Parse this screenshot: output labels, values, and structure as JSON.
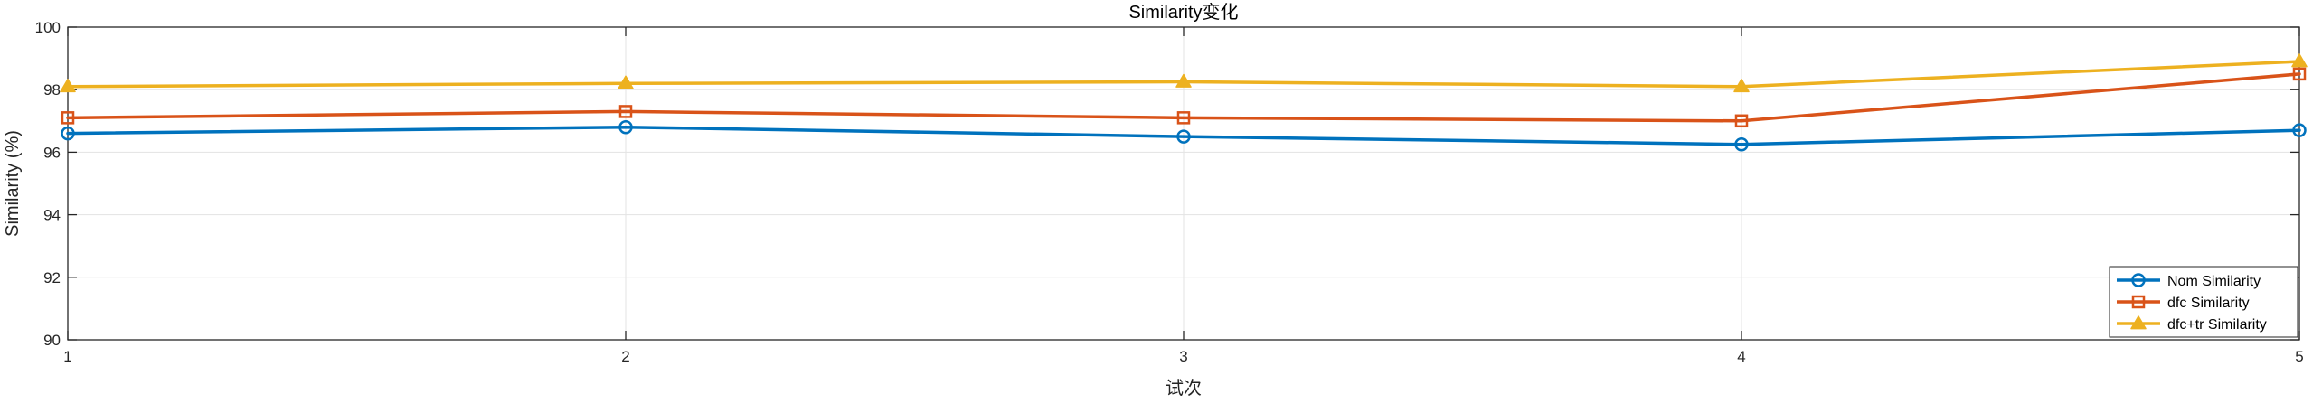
{
  "chart_data": {
    "type": "line",
    "title": "Similarity变化",
    "xlabel": "试次",
    "ylabel": "Similarity (%)",
    "x": [
      1,
      2,
      3,
      4,
      5
    ],
    "xlim": [
      1,
      5
    ],
    "ylim": [
      90,
      100
    ],
    "xticks": [
      1,
      2,
      3,
      4,
      5
    ],
    "yticks": [
      90,
      92,
      94,
      96,
      98,
      100
    ],
    "grid": true,
    "legend_position": "bottom-right",
    "series": [
      {
        "name": "Nom Similarity",
        "values": [
          96.6,
          96.8,
          96.5,
          96.25,
          96.7
        ],
        "color": "#0072BD",
        "marker": "circle"
      },
      {
        "name": "dfc Similarity",
        "values": [
          97.1,
          97.3,
          97.1,
          97.0,
          98.5
        ],
        "color": "#D95319",
        "marker": "square"
      },
      {
        "name": "dfc+tr Similarity",
        "values": [
          98.1,
          98.2,
          98.25,
          98.1,
          98.9
        ],
        "color": "#EDB120",
        "marker": "triangle"
      }
    ]
  }
}
